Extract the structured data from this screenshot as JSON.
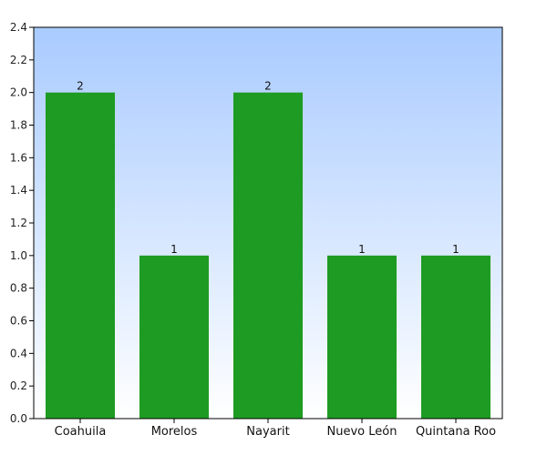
{
  "chart_data": {
    "type": "bar",
    "title": "",
    "xlabel": "",
    "ylabel": "",
    "categories": [
      "Coahuila",
      "Morelos",
      "Nayarit",
      "Nuevo León",
      "Quintana Roo"
    ],
    "values": [
      2,
      1,
      2,
      1,
      1
    ],
    "data_labels": [
      "2",
      "1",
      "2",
      "1",
      "1"
    ],
    "ylim": [
      0,
      2.4
    ],
    "yticks": [
      0.0,
      0.2,
      0.4,
      0.6,
      0.8,
      1.0,
      1.2,
      1.4,
      1.6,
      1.8,
      2.0,
      2.2,
      2.4
    ],
    "ytick_labels": [
      "0.0",
      "0.2",
      "0.4",
      "0.6",
      "0.8",
      "1.0",
      "1.2",
      "1.4",
      "1.6",
      "1.8",
      "2.0",
      "2.2",
      "2.4"
    ],
    "grid": false,
    "legend": "none",
    "colors": {
      "bar": "#1e9b22",
      "background_top": "#a9cbff",
      "background_bottom": "#ffffff",
      "axis": "#000000"
    }
  }
}
